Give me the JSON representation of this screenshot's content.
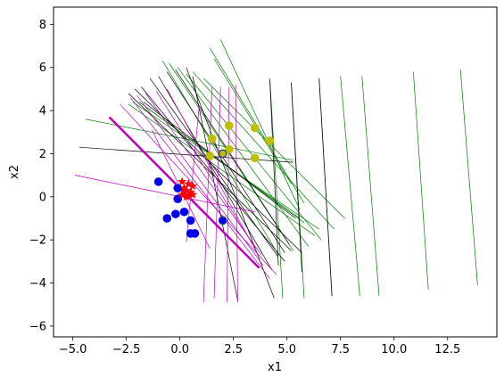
{
  "chart_data": {
    "type": "scatter",
    "xlabel": "x1",
    "ylabel": "x2",
    "xlim": [
      -5.9,
      14.8
    ],
    "ylim": [
      -6.5,
      8.8
    ],
    "x_ticks": [
      -5.0,
      -2.5,
      0.0,
      2.5,
      5.0,
      7.5,
      10.0,
      12.5
    ],
    "y_ticks": [
      -6,
      -4,
      -2,
      0,
      2,
      4,
      6,
      8
    ],
    "x_tick_labels": [
      "−5.0",
      "−2.5",
      "0.0",
      "2.5",
      "5.0",
      "7.5",
      "10.0",
      "12.5"
    ],
    "y_tick_labels": [
      "−6",
      "−4",
      "−2",
      "0",
      "2",
      "4",
      "6",
      "8"
    ],
    "grid": false,
    "legend": "none",
    "colors": {
      "blue": "#0000ee",
      "olive": "#bfbf00",
      "red": "#ff0000",
      "green": "#008000",
      "magenta": "#bf00bf",
      "black": "#000000",
      "bold_line": "#bf00bf"
    },
    "scatter_points": {
      "blue": [
        [
          -1.0,
          0.7
        ],
        [
          -0.1,
          0.4
        ],
        [
          -0.1,
          -0.1
        ],
        [
          -0.6,
          -1.0
        ],
        [
          -0.2,
          -0.8
        ],
        [
          0.2,
          -0.7
        ],
        [
          0.5,
          -1.1
        ],
        [
          0.5,
          -1.7
        ],
        [
          0.7,
          -1.7
        ],
        [
          2.0,
          -1.1
        ]
      ],
      "olive": [
        [
          1.5,
          2.7
        ],
        [
          2.3,
          3.3
        ],
        [
          3.5,
          3.2
        ],
        [
          4.2,
          2.6
        ],
        [
          1.4,
          1.9
        ],
        [
          2.3,
          2.2
        ],
        [
          3.5,
          1.8
        ],
        [
          2.0,
          2.0
        ]
      ],
      "outlined_points": [
        [
          2.0,
          2.0
        ],
        [
          2.0,
          -1.1
        ]
      ],
      "red_stars": [
        [
          0.1,
          0.7
        ],
        [
          0.4,
          0.6
        ],
        [
          0.6,
          0.5
        ],
        [
          0.3,
          0.3
        ],
        [
          0.5,
          0.2
        ],
        [
          0.1,
          0.1
        ],
        [
          0.3,
          0.0
        ],
        [
          0.6,
          0.1
        ],
        [
          0.2,
          0.4
        ],
        [
          0.4,
          0.05
        ]
      ]
    },
    "lines": {
      "green": [
        [
          [
            -0.8,
            6.3
          ],
          [
            4.6,
            -2.7
          ]
        ],
        [
          [
            -0.5,
            6.2
          ],
          [
            5.3,
            -2.5
          ]
        ],
        [
          [
            -0.1,
            6.0
          ],
          [
            6.0,
            -2.3
          ]
        ],
        [
          [
            0.3,
            5.7
          ],
          [
            6.6,
            -2.0
          ]
        ],
        [
          [
            0.6,
            5.8
          ],
          [
            7.2,
            -1.5
          ]
        ],
        [
          [
            1.1,
            5.5
          ],
          [
            7.7,
            -1.0
          ]
        ],
        [
          [
            1.9,
            7.3
          ],
          [
            5.6,
            -0.6
          ]
        ],
        [
          [
            1.4,
            6.9
          ],
          [
            5.8,
            -0.3
          ]
        ],
        [
          [
            1.6,
            6.4
          ],
          [
            5.2,
            0.6
          ]
        ],
        [
          [
            -2.4,
            4.3
          ],
          [
            6.3,
            -1.8
          ]
        ],
        [
          [
            -2.2,
            4.4
          ],
          [
            6.5,
            -1.5
          ]
        ],
        [
          [
            -4.4,
            3.6
          ],
          [
            5.3,
            1.7
          ]
        ],
        [
          [
            -1.9,
            4.4
          ],
          [
            5.8,
            -1.2
          ]
        ],
        [
          [
            -1.5,
            4.1
          ],
          [
            5.6,
            -1.0
          ]
        ],
        [
          [
            4.2,
            5.5
          ],
          [
            4.8,
            -4.7
          ]
        ],
        [
          [
            5.2,
            5.3
          ],
          [
            5.8,
            -4.7
          ]
        ],
        [
          [
            6.5,
            5.5
          ],
          [
            7.1,
            -4.6
          ]
        ],
        [
          [
            7.5,
            5.6
          ],
          [
            8.4,
            -4.6
          ]
        ],
        [
          [
            8.5,
            5.6
          ],
          [
            9.3,
            -4.6
          ]
        ],
        [
          [
            10.9,
            5.8
          ],
          [
            11.6,
            -4.3
          ]
        ],
        [
          [
            13.1,
            5.9
          ],
          [
            13.9,
            -4.1
          ]
        ]
      ],
      "black": [
        [
          [
            -2.4,
            4.8
          ],
          [
            5.2,
            -2.5
          ]
        ],
        [
          [
            -2.1,
            5.0
          ],
          [
            5.7,
            -2.6
          ]
        ],
        [
          [
            -1.8,
            5.1
          ],
          [
            4.9,
            -3.0
          ]
        ],
        [
          [
            -1.4,
            5.5
          ],
          [
            4.6,
            -2.8
          ]
        ],
        [
          [
            -1.0,
            5.6
          ],
          [
            4.3,
            -3.4
          ]
        ],
        [
          [
            -0.6,
            5.8
          ],
          [
            4.9,
            -2.6
          ]
        ],
        [
          [
            -0.2,
            5.9
          ],
          [
            5.1,
            -2.2
          ]
        ],
        [
          [
            0.3,
            6.0
          ],
          [
            4.4,
            -4.7
          ]
        ],
        [
          [
            -4.7,
            2.3
          ],
          [
            5.3,
            1.6
          ]
        ],
        [
          [
            -1.7,
            4.4
          ],
          [
            5.4,
            -1.0
          ]
        ],
        [
          [
            0.6,
            5.6
          ],
          [
            2.7,
            -4.8
          ]
        ],
        [
          [
            4.2,
            5.4
          ],
          [
            4.6,
            -3.2
          ]
        ],
        [
          [
            5.2,
            5.3
          ],
          [
            5.7,
            -3.5
          ]
        ],
        [
          [
            6.5,
            5.5
          ],
          [
            7.1,
            -4.6
          ]
        ]
      ],
      "magenta": [
        [
          [
            -4.9,
            1.0
          ],
          [
            3.5,
            -0.7
          ]
        ],
        [
          [
            -2.8,
            4.3
          ],
          [
            4.5,
            -3.6
          ]
        ],
        [
          [
            -2.3,
            4.6
          ],
          [
            4.2,
            -3.8
          ]
        ],
        [
          [
            -2.0,
            4.7
          ],
          [
            3.9,
            -3.2
          ]
        ],
        [
          [
            -1.6,
            4.8
          ],
          [
            3.8,
            -2.7
          ]
        ],
        [
          [
            -1.1,
            4.9
          ],
          [
            3.4,
            -2.2
          ]
        ],
        [
          [
            -0.6,
            5.0
          ],
          [
            3.6,
            -2.6
          ]
        ],
        [
          [
            1.5,
            5.1
          ],
          [
            1.1,
            -4.9
          ]
        ],
        [
          [
            1.9,
            5.1
          ],
          [
            1.6,
            -4.7
          ]
        ],
        [
          [
            2.3,
            5.1
          ],
          [
            2.2,
            -4.9
          ]
        ],
        [
          [
            2.6,
            5.2
          ],
          [
            2.7,
            -4.9
          ]
        ],
        [
          [
            0.9,
            4.2
          ],
          [
            0.3,
            -2.1
          ]
        ],
        [
          [
            -1.3,
            3.1
          ],
          [
            1.4,
            -2.4
          ]
        ]
      ],
      "bold": [
        [
          [
            -3.3,
            3.7
          ],
          [
            3.7,
            -3.3
          ]
        ]
      ]
    }
  }
}
